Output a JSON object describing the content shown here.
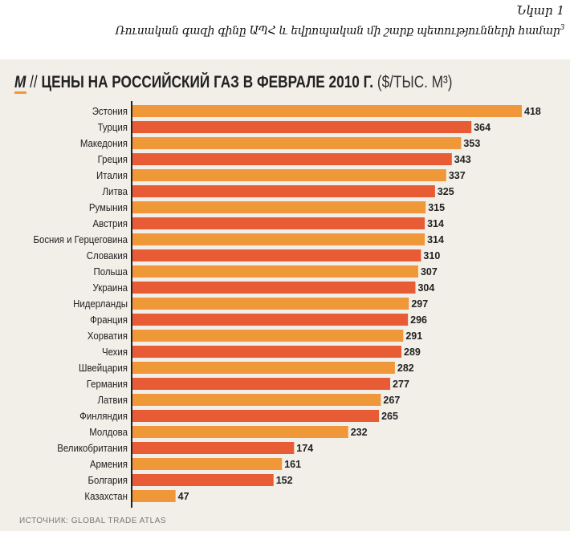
{
  "caption": {
    "figure_label": "Նկար 1",
    "text": "Ռուսական գազի գինը ԱՊՀ և եվրոպական մի շարք պետությունների համար",
    "footnote_mark": "3"
  },
  "chart_data": {
    "type": "bar",
    "orientation": "horizontal",
    "logo": "M",
    "title_sep": "//",
    "title": "ЦЕНЫ НА РОССИЙСКИЙ ГАЗ В ФЕВРАЛЕ 2010 Г.",
    "unit": "($/ТЫС. М³)",
    "categories": [
      "Эстония",
      "Турция",
      "Македония",
      "Греция",
      "Италия",
      "Литва",
      "Румыния",
      "Австрия",
      "Босния и Герцеговина",
      "Словакия",
      "Польша",
      "Украина",
      "Нидерланды",
      "Франция",
      "Хорватия",
      "Чехия",
      "Швейцария",
      "Германия",
      "Латвия",
      "Финляндия",
      "Молдова",
      "Великобритания",
      "Армения",
      "Болгария",
      "Казахстан"
    ],
    "values": [
      418,
      364,
      353,
      343,
      337,
      325,
      315,
      314,
      314,
      310,
      307,
      304,
      297,
      296,
      291,
      289,
      282,
      277,
      267,
      265,
      232,
      174,
      161,
      152,
      47
    ],
    "xlim": [
      0,
      418
    ],
    "colors": [
      "#f0973a",
      "#e85c35"
    ],
    "grid": false,
    "source": "ИСТОЧНИК: GLOBAL TRADE ATLAS"
  }
}
